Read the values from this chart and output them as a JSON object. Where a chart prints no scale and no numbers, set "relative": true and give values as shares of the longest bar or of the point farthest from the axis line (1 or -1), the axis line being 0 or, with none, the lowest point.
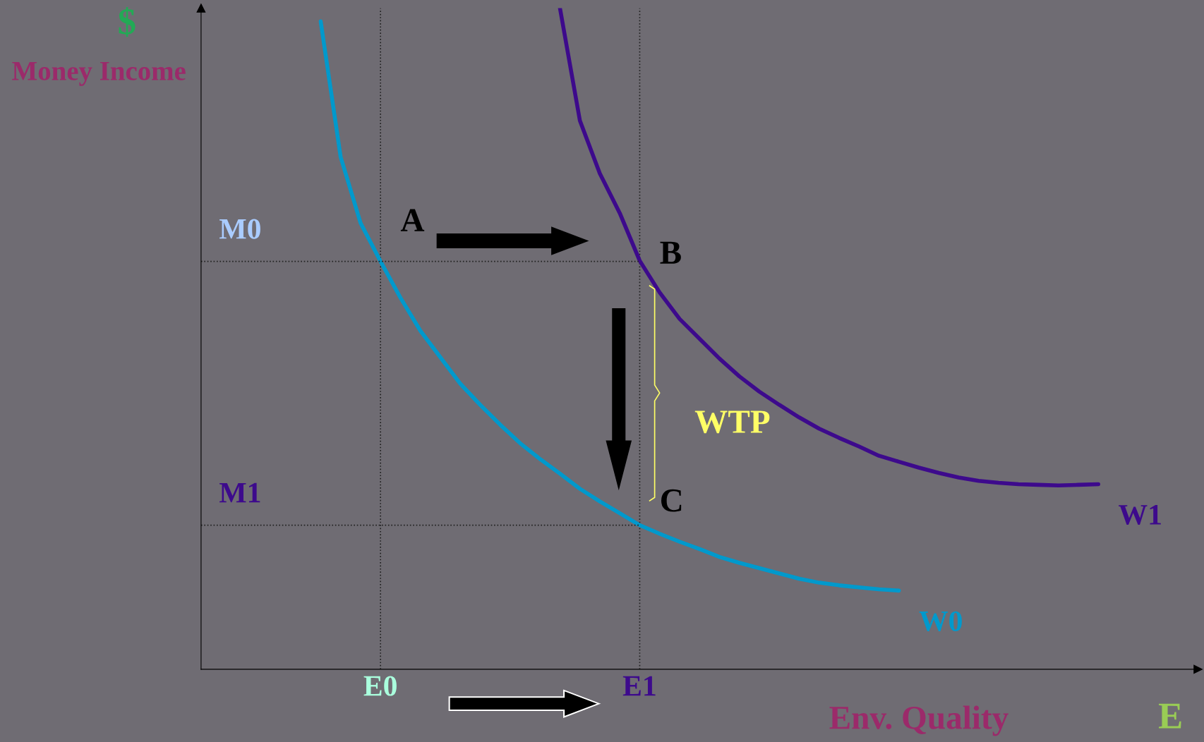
{
  "chart_data": {
    "type": "line",
    "relative": true,
    "xlabel": "Env. Quality",
    "ylabel": "Money Income",
    "categories": [
      null,
      null,
      null,
      null,
      null,
      null,
      null,
      null,
      null,
      "E0",
      null,
      null,
      null,
      null,
      null,
      null,
      null,
      null,
      null,
      null,
      null,
      null,
      "E1",
      null,
      null,
      null,
      null,
      null,
      null,
      null,
      null,
      null,
      null,
      null,
      null,
      null,
      null,
      null,
      null,
      null,
      null,
      null,
      null,
      null,
      null,
      null,
      null,
      null,
      null,
      null,
      null
    ],
    "series": [
      {
        "name": "W0",
        "color": "#0099cc",
        "values": [
          null,
          null,
          null,
          null,
          null,
          null,
          0.98,
          0.775,
          0.675,
          0.617,
          0.562,
          0.512,
          0.472,
          0.432,
          0.4,
          0.37,
          0.342,
          0.318,
          0.296,
          0.273,
          0.254,
          0.236,
          0.218,
          0.205,
          0.193,
          0.182,
          0.17,
          0.161,
          0.153,
          0.145,
          0.137,
          0.131,
          0.127,
          0.124,
          0.121,
          0.119,
          null,
          null,
          null,
          null,
          null,
          null,
          null,
          null,
          null,
          null,
          null,
          null,
          null,
          null,
          null
        ]
      },
      {
        "name": "W1",
        "color": "#3d0a8c",
        "values": [
          null,
          null,
          null,
          null,
          null,
          null,
          null,
          null,
          null,
          null,
          null,
          null,
          null,
          null,
          null,
          null,
          null,
          null,
          1.0,
          0.83,
          0.75,
          0.69,
          0.618,
          0.57,
          0.53,
          0.5,
          0.47,
          0.443,
          0.42,
          0.4,
          0.381,
          0.364,
          0.35,
          0.337,
          0.323,
          0.314,
          0.305,
          0.297,
          0.29,
          0.285,
          0.282,
          0.28,
          0.279,
          0.278,
          0.279,
          0.28,
          null,
          null,
          null,
          null,
          null
        ]
      }
    ],
    "ref_lines": [
      {
        "axis": "y",
        "value": 0.617,
        "label": "M0",
        "line_style": "dotted"
      },
      {
        "axis": "y",
        "value": 0.218,
        "label": "M1",
        "line_style": "dotted"
      }
    ],
    "annotations": [
      "$",
      "E",
      {
        "text": "A",
        "x": "E0",
        "y": 0.617
      },
      {
        "text": "B",
        "x": "E1",
        "y": 0.618
      },
      {
        "text": "C",
        "x": "E1",
        "y": 0.218
      },
      "WTP"
    ],
    "grid": "x",
    "legend": false,
    "tick_labels": "x",
    "line_style": "solid",
    "marker": "none"
  }
}
